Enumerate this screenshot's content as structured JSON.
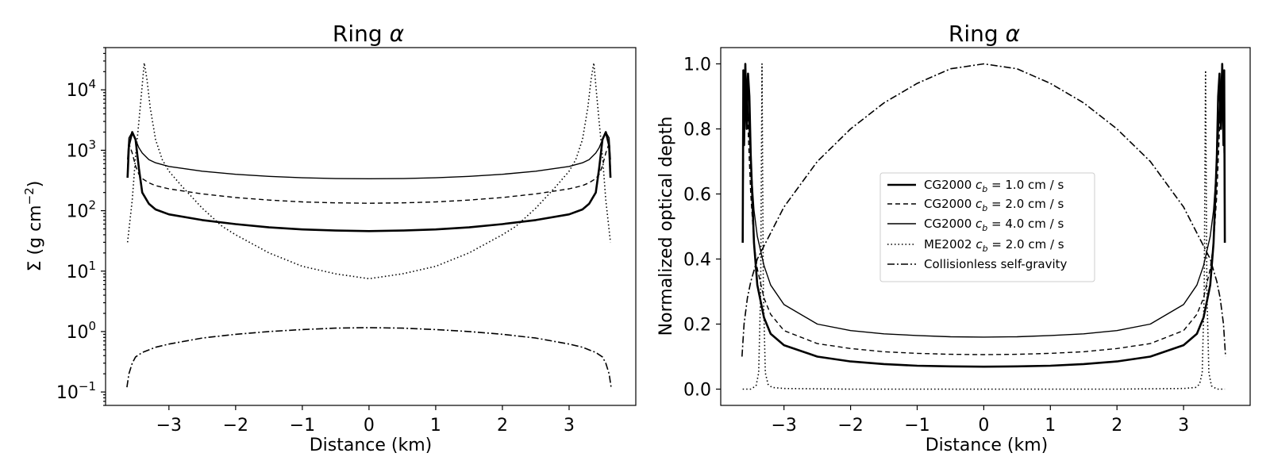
{
  "chart_data": [
    {
      "type": "line",
      "title": "Ring α",
      "title_main": "Ring",
      "title_symbol": "α",
      "xlabel": "Distance (km)",
      "ylabel": "Σ (g cm⁻²)",
      "ylabel_main": "Σ (g cm",
      "ylabel_exp": "−2",
      "ylabel_close": ")",
      "yscale": "log",
      "xlim": [
        -3.95,
        4.0
      ],
      "ylim": [
        0.06,
        50000
      ],
      "xticks": [
        -3,
        -2,
        -1,
        0,
        1,
        2,
        3
      ],
      "xtick_labels": [
        "−3",
        "−2",
        "−1",
        "0",
        "1",
        "2",
        "3"
      ],
      "yticks": [
        {
          "value": 0.1,
          "base": "10",
          "exp": "−1"
        },
        {
          "value": 1,
          "base": "10",
          "exp": "0"
        },
        {
          "value": 10,
          "base": "10",
          "exp": "1"
        },
        {
          "value": 100,
          "base": "10",
          "exp": "2"
        },
        {
          "value": 1000,
          "base": "10",
          "exp": "3"
        },
        {
          "value": 10000,
          "base": "10",
          "exp": "4"
        }
      ],
      "series": [
        {
          "name": "CG2000 c_b = 1.0 cm / s",
          "style": "solid-thick",
          "x": [
            -3.62,
            -3.6,
            -3.55,
            -3.5,
            -3.45,
            -3.4,
            -3.3,
            -3.2,
            -3.0,
            -2.5,
            -2.0,
            -1.5,
            -1.0,
            -0.5,
            0,
            0.5,
            1.0,
            1.5,
            2.0,
            2.5,
            3.0,
            3.2,
            3.3,
            3.4,
            3.45,
            3.5,
            3.55,
            3.6,
            3.62
          ],
          "y": [
            350,
            1200,
            2000,
            1500,
            500,
            200,
            130,
            105,
            87,
            70,
            60,
            53,
            49,
            47,
            46,
            47,
            49,
            53,
            60,
            70,
            87,
            105,
            130,
            200,
            500,
            1500,
            2000,
            1200,
            350
          ]
        },
        {
          "name": "CG2000 c_b = 2.0 cm / s",
          "style": "dashed",
          "x": [
            -3.62,
            -3.6,
            -3.55,
            -3.5,
            -3.45,
            -3.4,
            -3.3,
            -3.2,
            -3.0,
            -2.5,
            -2.0,
            -1.5,
            -1.0,
            -0.5,
            0,
            0.5,
            1.0,
            1.5,
            2.0,
            2.5,
            3.0,
            3.2,
            3.3,
            3.4,
            3.45,
            3.5,
            3.55,
            3.6,
            3.62
          ],
          "y": [
            500,
            1300,
            900,
            550,
            400,
            340,
            290,
            260,
            230,
            190,
            165,
            150,
            140,
            135,
            133,
            135,
            140,
            150,
            165,
            190,
            230,
            260,
            290,
            340,
            400,
            550,
            900,
            1300,
            500
          ]
        },
        {
          "name": "CG2000 c_b = 4.0 cm / s",
          "style": "solid",
          "x": [
            -3.62,
            -3.6,
            -3.55,
            -3.5,
            -3.45,
            -3.4,
            -3.3,
            -3.2,
            -3.0,
            -2.5,
            -2.0,
            -1.5,
            -1.0,
            -0.5,
            0,
            0.5,
            1.0,
            1.5,
            2.0,
            2.5,
            3.0,
            3.2,
            3.3,
            3.4,
            3.45,
            3.5,
            3.55,
            3.6,
            3.62
          ],
          "y": [
            700,
            1600,
            2000,
            1500,
            1100,
            900,
            700,
            620,
            540,
            450,
            400,
            370,
            350,
            340,
            338,
            340,
            350,
            370,
            400,
            450,
            540,
            620,
            700,
            900,
            1100,
            1500,
            2000,
            1600,
            700
          ]
        },
        {
          "name": "ME2002 c_b = 2.0 cm / s",
          "style": "dotted",
          "x": [
            -3.62,
            -3.55,
            -3.5,
            -3.45,
            -3.4,
            -3.37,
            -3.33,
            -3.28,
            -3.2,
            -3.1,
            -3.0,
            -2.8,
            -2.5,
            -2.2,
            -2.0,
            -1.5,
            -1.0,
            -0.5,
            0,
            0.5,
            1.0,
            1.5,
            2.0,
            2.2,
            2.5,
            2.8,
            3.0,
            3.1,
            3.2,
            3.28,
            3.33,
            3.37,
            3.4,
            3.45,
            3.5,
            3.55,
            3.62
          ],
          "y": [
            30,
            150,
            800,
            3000,
            12000,
            28000,
            15000,
            5000,
            1500,
            700,
            450,
            250,
            110,
            55,
            40,
            20,
            12,
            9,
            7.5,
            9,
            12,
            20,
            40,
            55,
            110,
            250,
            450,
            700,
            1500,
            5000,
            15000,
            28000,
            12000,
            3000,
            800,
            150,
            30
          ]
        },
        {
          "name": "Collisionless self-gravity",
          "style": "dashdot",
          "x": [
            -3.63,
            -3.6,
            -3.55,
            -3.5,
            -3.4,
            -3.2,
            -3.0,
            -2.5,
            -2.0,
            -1.5,
            -1.0,
            -0.5,
            0,
            0.5,
            1.0,
            1.5,
            2.0,
            2.5,
            3.0,
            3.2,
            3.4,
            3.5,
            3.55,
            3.6,
            3.63
          ],
          "y": [
            0.12,
            0.2,
            0.3,
            0.38,
            0.45,
            0.55,
            0.62,
            0.78,
            0.9,
            1.0,
            1.08,
            1.14,
            1.16,
            1.14,
            1.08,
            1.0,
            0.9,
            0.78,
            0.62,
            0.55,
            0.45,
            0.38,
            0.3,
            0.2,
            0.12
          ]
        }
      ]
    },
    {
      "type": "line",
      "title": "Ring α",
      "title_main": "Ring",
      "title_symbol": "α",
      "xlabel": "Distance (km)",
      "ylabel": "Normalized optical depth",
      "yscale": "linear",
      "xlim": [
        -3.95,
        4.0
      ],
      "ylim": [
        -0.05,
        1.05
      ],
      "xticks": [
        -3,
        -2,
        -1,
        0,
        1,
        2,
        3
      ],
      "xtick_labels": [
        "−3",
        "−2",
        "−1",
        "0",
        "1",
        "2",
        "3"
      ],
      "yticks": [
        {
          "value": 0.0,
          "label": "0.0"
        },
        {
          "value": 0.2,
          "label": "0.2"
        },
        {
          "value": 0.4,
          "label": "0.4"
        },
        {
          "value": 0.6,
          "label": "0.6"
        },
        {
          "value": 0.8,
          "label": "0.8"
        },
        {
          "value": 1.0,
          "label": "1.0"
        }
      ],
      "legend": {
        "location": "center-right",
        "entries": [
          {
            "prefix": "CG2000 ",
            "var": "c",
            "sub": "b",
            "suffix": " = 1.0 cm / s",
            "style": "solid-thick"
          },
          {
            "prefix": "CG2000 ",
            "var": "c",
            "sub": "b",
            "suffix": " = 2.0 cm / s",
            "style": "dashed"
          },
          {
            "prefix": "CG2000 ",
            "var": "c",
            "sub": "b",
            "suffix": " = 4.0 cm / s",
            "style": "solid"
          },
          {
            "prefix": "ME2002 ",
            "var": "c",
            "sub": "b",
            "suffix": " = 2.0 cm / s",
            "style": "dotted"
          },
          {
            "prefix": "Collisionless self-gravity",
            "var": "",
            "sub": "",
            "suffix": "",
            "style": "dashdot"
          }
        ]
      },
      "series": [
        {
          "name": "CG2000 c_b = 1.0 cm / s",
          "style": "solid-thick",
          "x": [
            -3.62,
            -3.61,
            -3.6,
            -3.58,
            -3.56,
            -3.54,
            -3.52,
            -3.5,
            -3.45,
            -3.4,
            -3.3,
            -3.2,
            -3.0,
            -2.5,
            -2.0,
            -1.5,
            -1.0,
            -0.5,
            0,
            0.5,
            1.0,
            1.5,
            2.0,
            2.5,
            3.0,
            3.2,
            3.3,
            3.4,
            3.45,
            3.5,
            3.52,
            3.54,
            3.56,
            3.58,
            3.6,
            3.61,
            3.62
          ],
          "y": [
            0.45,
            0.98,
            0.75,
            1.0,
            0.8,
            0.97,
            0.9,
            0.72,
            0.45,
            0.32,
            0.22,
            0.17,
            0.135,
            0.1,
            0.085,
            0.077,
            0.072,
            0.07,
            0.069,
            0.07,
            0.072,
            0.077,
            0.085,
            0.1,
            0.135,
            0.17,
            0.22,
            0.32,
            0.45,
            0.72,
            0.9,
            0.97,
            0.8,
            1.0,
            0.75,
            0.98,
            0.45
          ]
        },
        {
          "name": "CG2000 c_b = 2.0 cm / s",
          "style": "dashed",
          "x": [
            -3.62,
            -3.6,
            -3.55,
            -3.5,
            -3.45,
            -3.4,
            -3.3,
            -3.2,
            -3.0,
            -2.5,
            -2.0,
            -1.5,
            -1.0,
            -0.5,
            0,
            0.5,
            1.0,
            1.5,
            2.0,
            2.5,
            3.0,
            3.2,
            3.3,
            3.4,
            3.45,
            3.5,
            3.55,
            3.6,
            3.62
          ],
          "y": [
            0.5,
            0.9,
            0.85,
            0.6,
            0.45,
            0.37,
            0.28,
            0.23,
            0.18,
            0.14,
            0.125,
            0.115,
            0.11,
            0.107,
            0.106,
            0.107,
            0.11,
            0.115,
            0.125,
            0.14,
            0.18,
            0.23,
            0.28,
            0.37,
            0.45,
            0.6,
            0.85,
            0.9,
            0.5
          ]
        },
        {
          "name": "CG2000 c_b = 4.0 cm / s",
          "style": "solid",
          "x": [
            -3.62,
            -3.6,
            -3.58,
            -3.55,
            -3.5,
            -3.45,
            -3.4,
            -3.3,
            -3.2,
            -3.0,
            -2.5,
            -2.0,
            -1.5,
            -1.0,
            -0.5,
            0,
            0.5,
            1.0,
            1.5,
            2.0,
            2.5,
            3.0,
            3.2,
            3.3,
            3.4,
            3.45,
            3.5,
            3.55,
            3.58,
            3.6,
            3.62
          ],
          "y": [
            0.45,
            0.95,
            1.0,
            0.9,
            0.7,
            0.55,
            0.47,
            0.38,
            0.32,
            0.26,
            0.2,
            0.18,
            0.17,
            0.165,
            0.161,
            0.16,
            0.161,
            0.165,
            0.17,
            0.18,
            0.2,
            0.26,
            0.32,
            0.38,
            0.47,
            0.55,
            0.7,
            0.9,
            1.0,
            0.95,
            0.45
          ]
        },
        {
          "name": "ME2002 c_b = 2.0 cm / s",
          "style": "dotted",
          "x": [
            -3.62,
            -3.5,
            -3.42,
            -3.38,
            -3.35,
            -3.33,
            -3.31,
            -3.28,
            -3.24,
            -3.18,
            -3.0,
            -2.0,
            -1.0,
            0,
            1.0,
            2.0,
            3.0,
            3.18,
            3.24,
            3.28,
            3.31,
            3.33,
            3.35,
            3.38,
            3.42,
            3.5,
            3.62
          ],
          "y": [
            0.0,
            0.0,
            0.01,
            0.05,
            0.3,
            1.0,
            0.3,
            0.05,
            0.015,
            0.005,
            0.002,
            0.0,
            0.0,
            0.0,
            0.0,
            0.0,
            0.002,
            0.005,
            0.015,
            0.05,
            0.3,
            0.98,
            0.3,
            0.05,
            0.01,
            0.0,
            0.0
          ]
        },
        {
          "name": "Collisionless self-gravity",
          "style": "dashdot",
          "x": [
            -3.63,
            -3.6,
            -3.55,
            -3.5,
            -3.4,
            -3.2,
            -3.0,
            -2.5,
            -2.0,
            -1.5,
            -1.0,
            -0.5,
            0,
            0.5,
            1.0,
            1.5,
            2.0,
            2.5,
            3.0,
            3.2,
            3.4,
            3.5,
            3.55,
            3.6,
            3.63
          ],
          "y": [
            0.1,
            0.2,
            0.28,
            0.33,
            0.4,
            0.48,
            0.56,
            0.7,
            0.8,
            0.88,
            0.94,
            0.985,
            1.0,
            0.985,
            0.94,
            0.88,
            0.8,
            0.7,
            0.56,
            0.48,
            0.4,
            0.33,
            0.28,
            0.2,
            0.1
          ]
        }
      ]
    }
  ]
}
